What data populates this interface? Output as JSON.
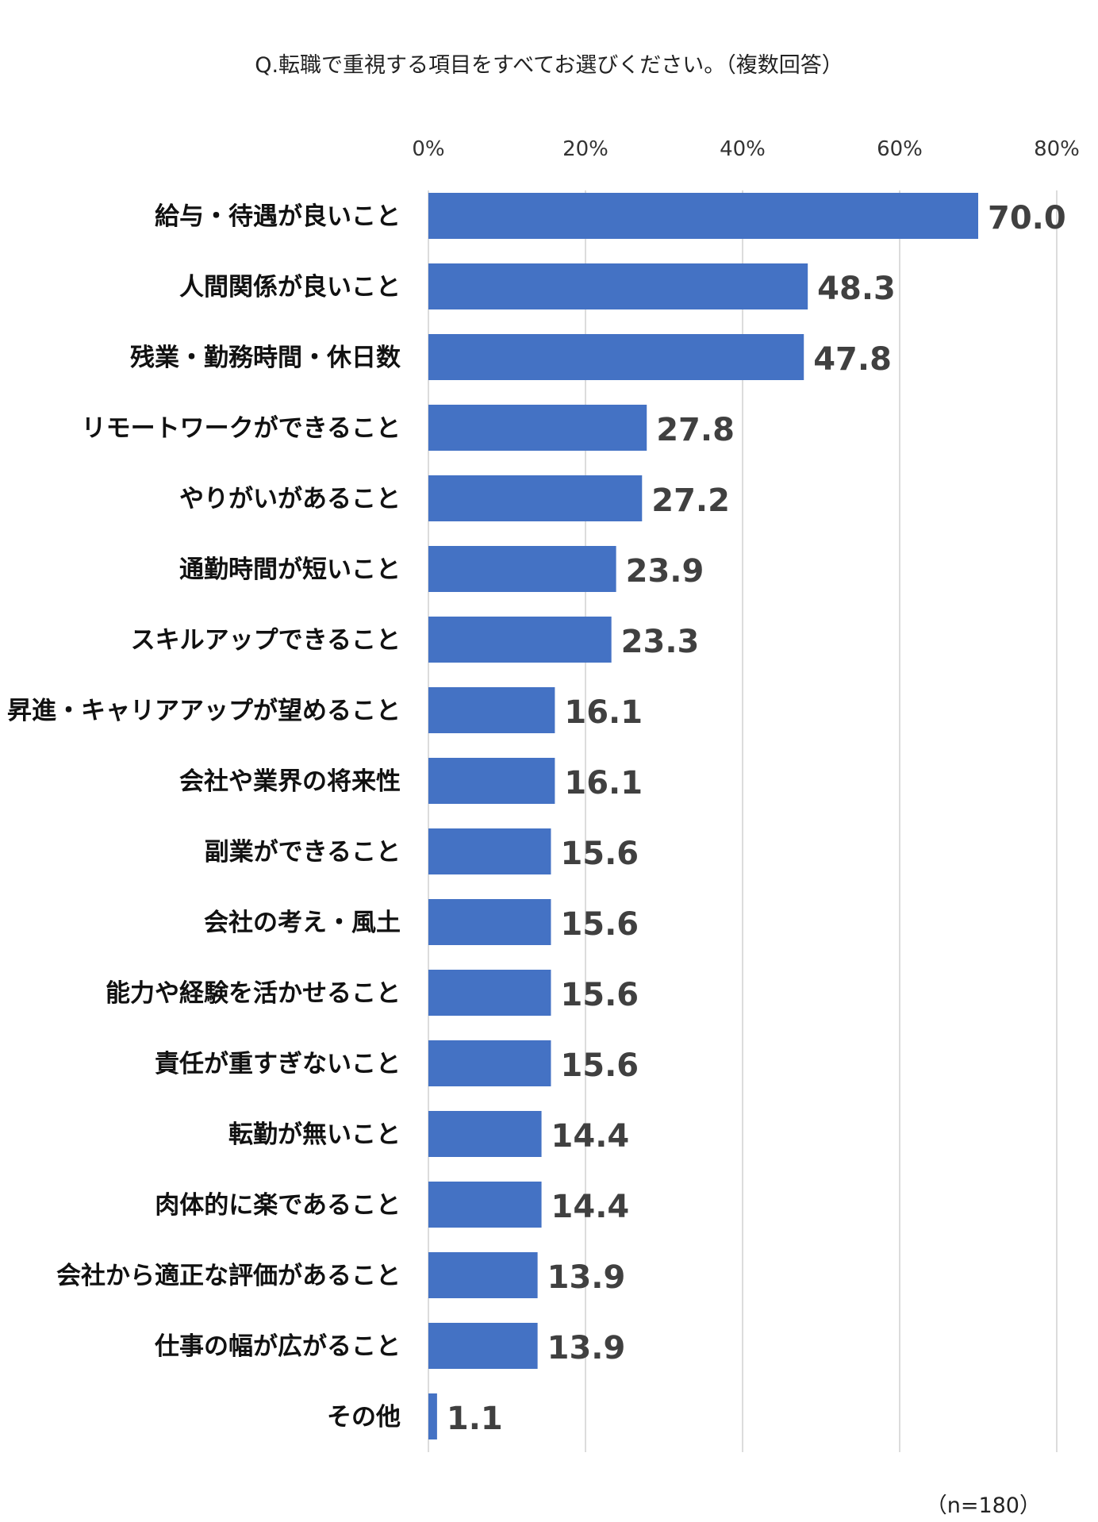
{
  "chart_data": {
    "type": "bar",
    "orientation": "horizontal",
    "title": "Q.転職で重視する項目をすべてお選びください。（複数回答）",
    "categories": [
      "給与・待遇が良いこと",
      "人間関係が良いこと",
      "残業・勤務時間・休日数",
      "リモートワークができること",
      "やりがいがあること",
      "通勤時間が短いこと",
      "スキルアップできること",
      "昇進・キャリアアップが望めること",
      "会社や業界の将来性",
      "副業ができること",
      "会社の考え・風土",
      "能力や経験を活かせること",
      "責任が重すぎないこと",
      "転勤が無いこと",
      "肉体的に楽であること",
      "会社から適正な評価があること",
      "仕事の幅が広がること",
      "その他"
    ],
    "values": [
      70.0,
      48.3,
      47.8,
      27.8,
      27.2,
      23.9,
      23.3,
      16.1,
      16.1,
      15.6,
      15.6,
      15.6,
      15.6,
      14.4,
      14.4,
      13.9,
      13.9,
      1.1
    ],
    "value_labels": [
      "70.0",
      "48.3",
      "47.8",
      "27.8",
      "27.2",
      "23.9",
      "23.3",
      "16.1",
      "16.1",
      "15.6",
      "15.6",
      "15.6",
      "15.6",
      "14.4",
      "14.4",
      "13.9",
      "13.9",
      "1.1"
    ],
    "xlim": [
      0,
      80
    ],
    "x_ticks": [
      0,
      20,
      40,
      60,
      80
    ],
    "x_tick_labels": [
      "0%",
      "20%",
      "40%",
      "60%",
      "80%"
    ],
    "x_axis_position": "top",
    "grid": true,
    "legend": "none",
    "bar_color": "#4472C4",
    "note": "（n=180）"
  }
}
